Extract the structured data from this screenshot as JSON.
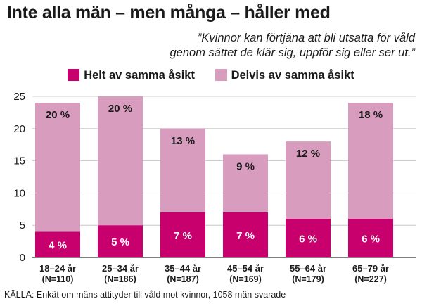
{
  "title": "Inte alla män – men många – håller med",
  "subtitle_lines": [
    "”Kvinnor kan förtjäna att bli utsatta för våld",
    "genom sättet de klär sig, uppför sig eller ser ut.”"
  ],
  "source": "KÄLLA: Enkät om mäns attityder till våld mot kvinnor, 1058 män svarade",
  "colors": {
    "series_helt": "#c8006e",
    "series_delvis": "#d89cbe",
    "grid": "#bdbdbd",
    "axis": "#333333"
  },
  "chart_data": {
    "type": "bar",
    "stacked": true,
    "categories": [
      "18–24 år",
      "25–34 år",
      "35–44 år",
      "45–54 år",
      "55–64 år",
      "65–79 år"
    ],
    "category_sublabels": [
      "(N=110)",
      "(N=186)",
      "(N=187)",
      "(N=169)",
      "(N=179)",
      "(N=227)"
    ],
    "series": [
      {
        "name": "Helt av samma åsikt",
        "values": [
          4,
          5,
          7,
          7,
          6,
          6
        ],
        "labels": [
          "4 %",
          "5 %",
          "7 %",
          "7 %",
          "6 %",
          "6 %"
        ]
      },
      {
        "name": "Delvis av samma åsikt",
        "values": [
          20,
          20,
          13,
          9,
          12,
          18
        ],
        "labels": [
          "20 %",
          "20 %",
          "13 %",
          "9 %",
          "12 %",
          "18 %"
        ]
      }
    ],
    "ylim": [
      0,
      25
    ],
    "yticks": [
      0,
      5,
      10,
      15,
      20,
      25
    ],
    "grid": true,
    "legend_position": "top-center"
  }
}
